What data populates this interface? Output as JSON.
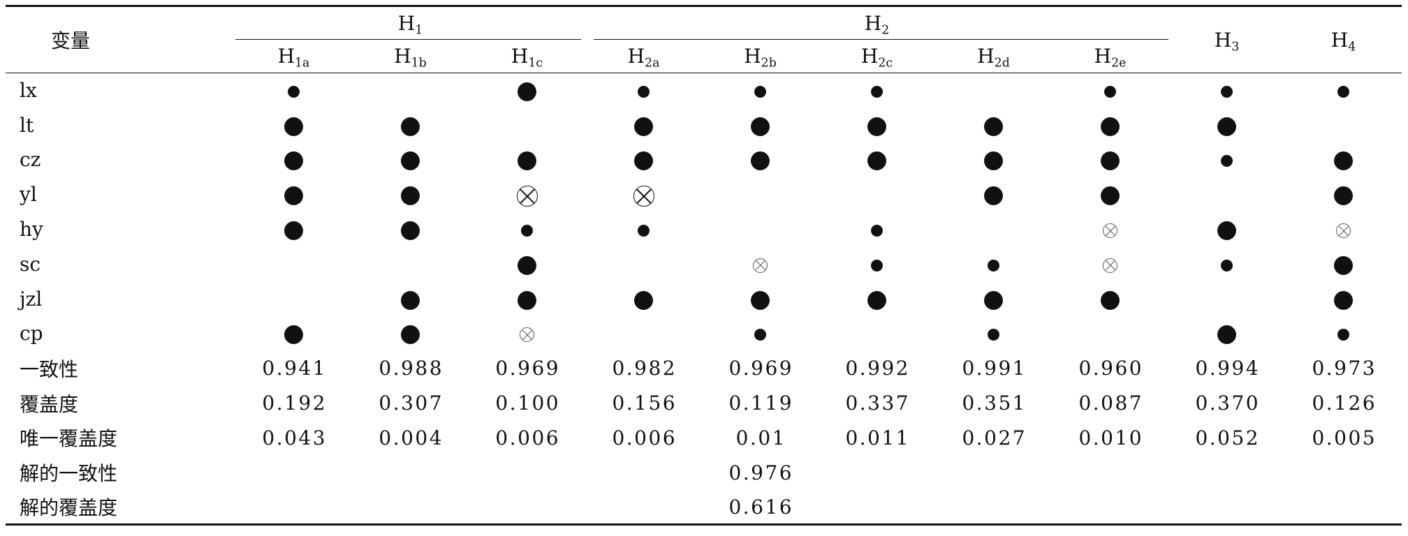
{
  "header": {
    "variable": "变量",
    "h1": {
      "main": "H",
      "sub": "1"
    },
    "h2": {
      "main": "H",
      "sub": "2"
    },
    "h3": {
      "main": "H",
      "sub": "3"
    },
    "h4": {
      "main": "H",
      "sub": "4"
    },
    "sub": [
      {
        "main": "H",
        "sub": "1a"
      },
      {
        "main": "H",
        "sub": "1b"
      },
      {
        "main": "H",
        "sub": "1c"
      },
      {
        "main": "H",
        "sub": "2a"
      },
      {
        "main": "H",
        "sub": "2b"
      },
      {
        "main": "H",
        "sub": "2c"
      },
      {
        "main": "H",
        "sub": "2d"
      },
      {
        "main": "H",
        "sub": "2e"
      }
    ]
  },
  "conditions": [
    {
      "label": "lx",
      "cells": [
        "peripheral-present",
        "",
        "core-present",
        "peripheral-present",
        "peripheral-present",
        "peripheral-present",
        "",
        "peripheral-present",
        "peripheral-present",
        "peripheral-present"
      ]
    },
    {
      "label": "lt",
      "cells": [
        "core-present",
        "core-present",
        "",
        "core-present",
        "core-present",
        "core-present",
        "core-present",
        "core-present",
        "core-present",
        ""
      ]
    },
    {
      "label": "cz",
      "cells": [
        "core-present",
        "core-present",
        "core-present",
        "core-present",
        "core-present",
        "core-present",
        "core-present",
        "core-present",
        "peripheral-present",
        "core-present"
      ]
    },
    {
      "label": "yl",
      "cells": [
        "core-present",
        "core-present",
        "core-absent",
        "core-absent",
        "",
        "",
        "core-present",
        "core-present",
        "",
        "core-present"
      ]
    },
    {
      "label": "hy",
      "cells": [
        "core-present",
        "core-present",
        "peripheral-present",
        "peripheral-present",
        "",
        "peripheral-present",
        "",
        "peripheral-absent",
        "core-present",
        "peripheral-absent"
      ]
    },
    {
      "label": "sc",
      "cells": [
        "",
        "",
        "core-present",
        "",
        "peripheral-absent",
        "peripheral-present",
        "peripheral-present",
        "peripheral-absent",
        "peripheral-present",
        "core-present"
      ]
    },
    {
      "label": "jzl",
      "cells": [
        "",
        "core-present",
        "core-present",
        "core-present",
        "core-present",
        "core-present",
        "core-present",
        "core-present",
        "",
        "core-present"
      ]
    },
    {
      "label": "cp",
      "cells": [
        "core-present",
        "core-present",
        "peripheral-absent",
        "",
        "peripheral-present",
        "",
        "peripheral-present",
        "",
        "core-present",
        "peripheral-present"
      ]
    }
  ],
  "stats": [
    {
      "label": "一致性",
      "values": [
        "0.941",
        "0.988",
        "0.969",
        "0.982",
        "0.969",
        "0.992",
        "0.991",
        "0.960",
        "0.994",
        "0.973"
      ]
    },
    {
      "label": "覆盖度",
      "values": [
        "0.192",
        "0.307",
        "0.100",
        "0.156",
        "0.119",
        "0.337",
        "0.351",
        "0.087",
        "0.370",
        "0.126"
      ]
    },
    {
      "label": "唯一覆盖度",
      "values": [
        "0.043",
        "0.004",
        "0.006",
        "0.006",
        "0.01",
        "0.011",
        "0.027",
        "0.010",
        "0.052",
        "0.005"
      ]
    }
  ],
  "solution": [
    {
      "label": "解的一致性",
      "values": [
        "",
        "",
        "",
        "",
        "0.976",
        "",
        "",
        "",
        "",
        ""
      ]
    },
    {
      "label": "解的覆盖度",
      "values": [
        "",
        "",
        "",
        "",
        "0.616",
        "",
        "",
        "",
        "",
        ""
      ]
    }
  ]
}
